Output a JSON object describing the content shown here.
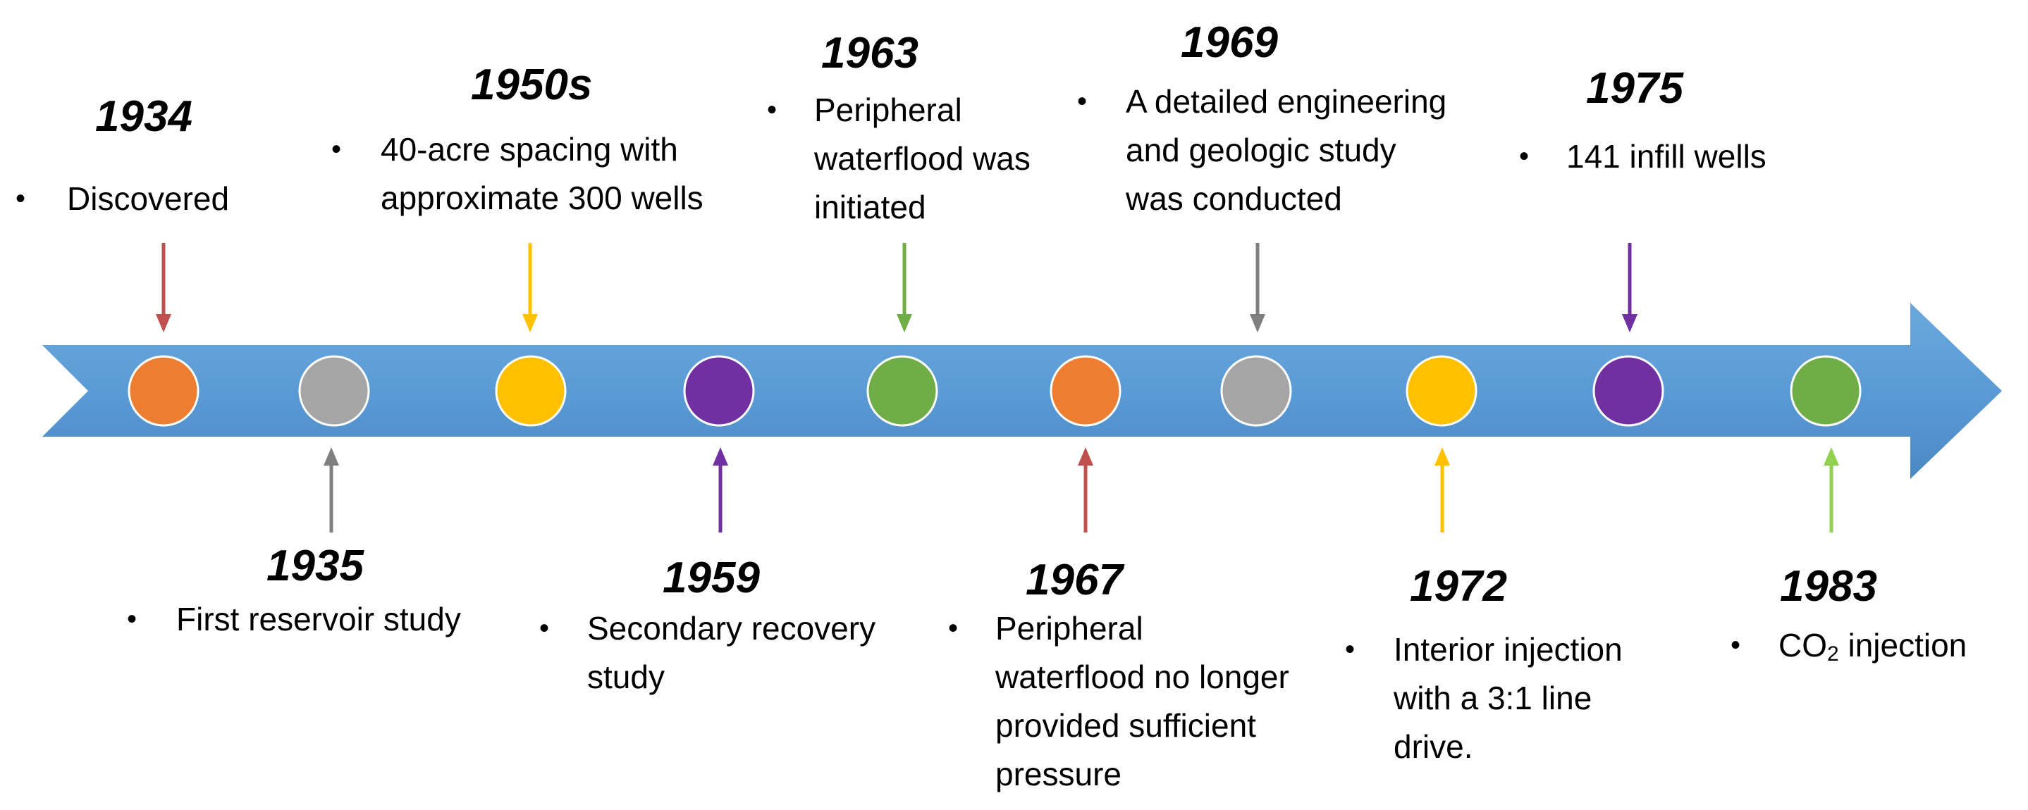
{
  "colors": {
    "band": "#5b9bd5",
    "band_edge": "#4f8bc4",
    "node_stroke": "#ffffff"
  },
  "events": [
    {
      "year": "1934",
      "side": "top",
      "color": "#ed7d31",
      "arrow_color": "#c0504d",
      "lines": [
        "Discovered"
      ]
    },
    {
      "year": "1935",
      "side": "bottom",
      "color": "#a5a5a5",
      "arrow_color": "#7f7f7f",
      "lines": [
        "First reservoir study"
      ]
    },
    {
      "year": "1950s",
      "side": "top",
      "color": "#ffc000",
      "arrow_color": "#ffc000",
      "lines": [
        "40-acre spacing with",
        "approximate 300 wells"
      ]
    },
    {
      "year": "1959",
      "side": "bottom",
      "color": "#7030a0",
      "arrow_color": "#7030a0",
      "lines": [
        "Secondary recovery",
        "study"
      ]
    },
    {
      "year": "1963",
      "side": "top",
      "color": "#70ad47",
      "arrow_color": "#70ad47",
      "lines": [
        "Peripheral",
        "waterflood was",
        "initiated"
      ]
    },
    {
      "year": "1967",
      "side": "bottom",
      "color": "#ed7d31",
      "arrow_color": "#c0504d",
      "lines": [
        "Peripheral",
        "waterflood no longer",
        "provided sufficient",
        "pressure"
      ]
    },
    {
      "year": "1969",
      "side": "top",
      "color": "#a5a5a5",
      "arrow_color": "#7f7f7f",
      "lines": [
        "A detailed engineering",
        "and geologic study",
        "was conducted"
      ]
    },
    {
      "year": "1972",
      "side": "bottom",
      "color": "#ffc000",
      "arrow_color": "#ffc000",
      "lines": [
        "Interior injection",
        "with a 3:1 line",
        "drive."
      ]
    },
    {
      "year": "1975",
      "side": "top",
      "color": "#7030a0",
      "arrow_color": "#7030a0",
      "lines": [
        "141 infill wells"
      ]
    },
    {
      "year": "1983",
      "side": "bottom",
      "color": "#70ad47",
      "arrow_color": "#92d050",
      "lines": [
        "CO",
        "2",
        " injection"
      ],
      "subscript": true
    }
  ]
}
